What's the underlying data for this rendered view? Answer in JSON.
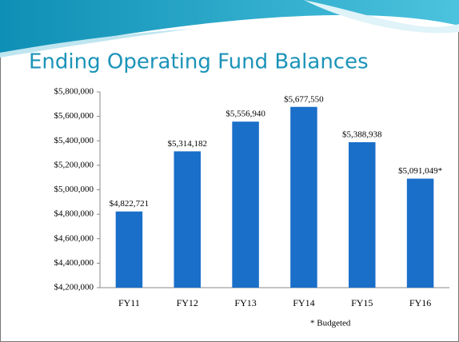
{
  "chart_data": {
    "type": "bar",
    "title": "Ending Operating Fund Balances",
    "categories": [
      "FY11",
      "FY12",
      "FY13",
      "FY14",
      "FY15",
      "FY16"
    ],
    "values": [
      4822721,
      5314182,
      5556940,
      5677550,
      5388938,
      5091049
    ],
    "value_labels": [
      "$4,822,721",
      "$5,314,182",
      "$5,556,940",
      "$5,677,550",
      "$5,388,938",
      "$5,091,049*"
    ],
    "color": "#1a6fc9",
    "ylim": [
      4200000,
      5800000
    ],
    "yticks": [
      {
        "value": 4200000,
        "label": "$4,200,000"
      },
      {
        "value": 4400000,
        "label": "$4,400,000"
      },
      {
        "value": 4600000,
        "label": "$4,600,000"
      },
      {
        "value": 4800000,
        "label": "$4,800,000"
      },
      {
        "value": 5000000,
        "label": "$5,000,000"
      },
      {
        "value": 5200000,
        "label": "$5,200,000"
      },
      {
        "value": 5400000,
        "label": "$5,400,000"
      },
      {
        "value": 5600000,
        "label": "$5,600,000"
      },
      {
        "value": 5800000,
        "label": "$5,800,000"
      }
    ],
    "annotation": "* Budgeted",
    "grid": false
  }
}
